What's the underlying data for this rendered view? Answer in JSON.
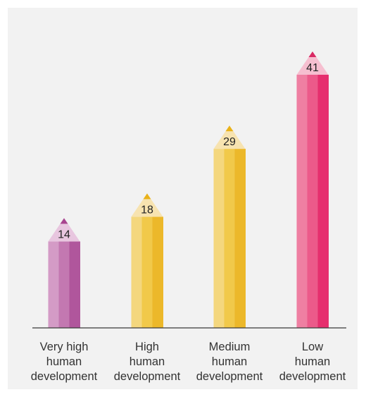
{
  "chart_data": {
    "type": "bar",
    "style": "pencil",
    "categories": [
      [
        "Very high",
        "human",
        "development"
      ],
      [
        "High",
        "human",
        "development"
      ],
      [
        "Medium",
        "human",
        "development"
      ],
      [
        "Low",
        "human",
        "development"
      ]
    ],
    "values": [
      14,
      18,
      29,
      41
    ],
    "data_labels": [
      "14",
      "18",
      "29",
      "41"
    ],
    "title": "",
    "xlabel": "",
    "ylabel": "",
    "grid": false,
    "legend": "none",
    "colors": [
      {
        "light": "#d49bc6",
        "mid": "#c378b1",
        "dark": "#b0569c",
        "tip": "#e8c6df",
        "lead": "#a8448f"
      },
      {
        "light": "#f4d77e",
        "mid": "#f1c94a",
        "dark": "#ecb82a",
        "tip": "#f7e3b0",
        "lead": "#e9b21a"
      },
      {
        "light": "#f4d77e",
        "mid": "#f1c94a",
        "dark": "#ecb82a",
        "tip": "#f7e3b0",
        "lead": "#e9b21a"
      },
      {
        "light": "#ef7fa2",
        "mid": "#ec5a8a",
        "dark": "#e62f6e",
        "tip": "#f6bfd0",
        "lead": "#d92a64"
      }
    ]
  }
}
